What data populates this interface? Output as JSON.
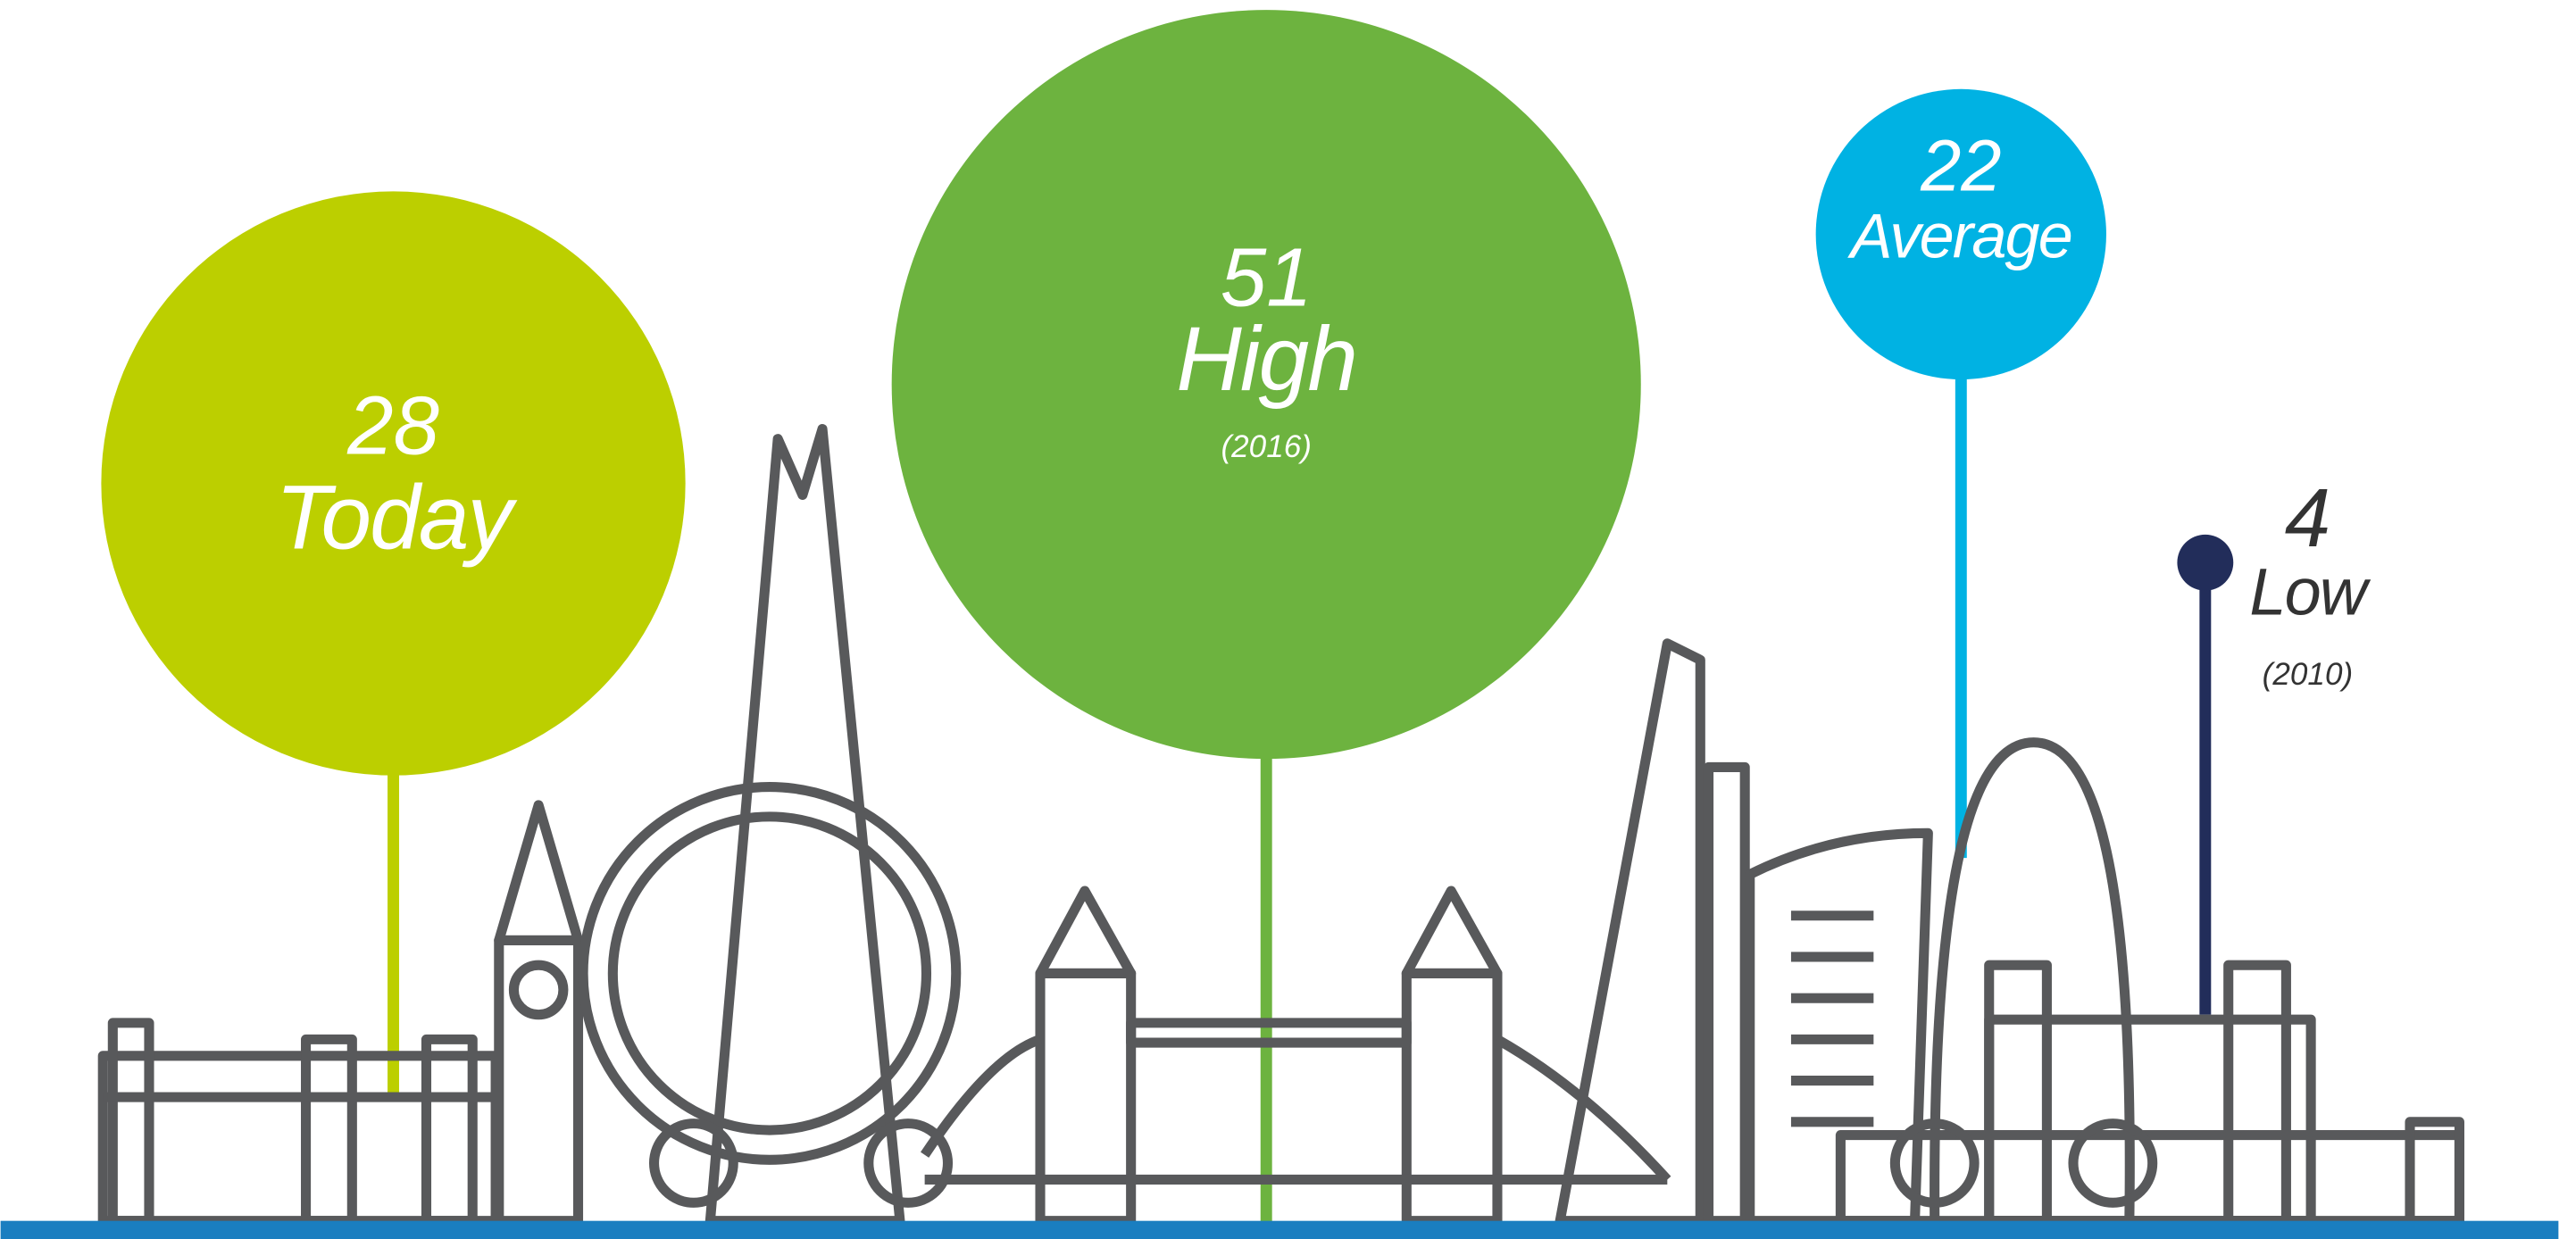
{
  "chart_data": {
    "type": "bubble",
    "categories": [
      "Today",
      "High",
      "Average",
      "Low"
    ],
    "values": [
      28,
      51,
      22,
      4
    ],
    "notes": [
      null,
      "(2016)",
      null,
      "(2010)"
    ],
    "colors": [
      "#bccf00",
      "#6db33f",
      "#00b2e3",
      "#222d5a"
    ]
  }
}
